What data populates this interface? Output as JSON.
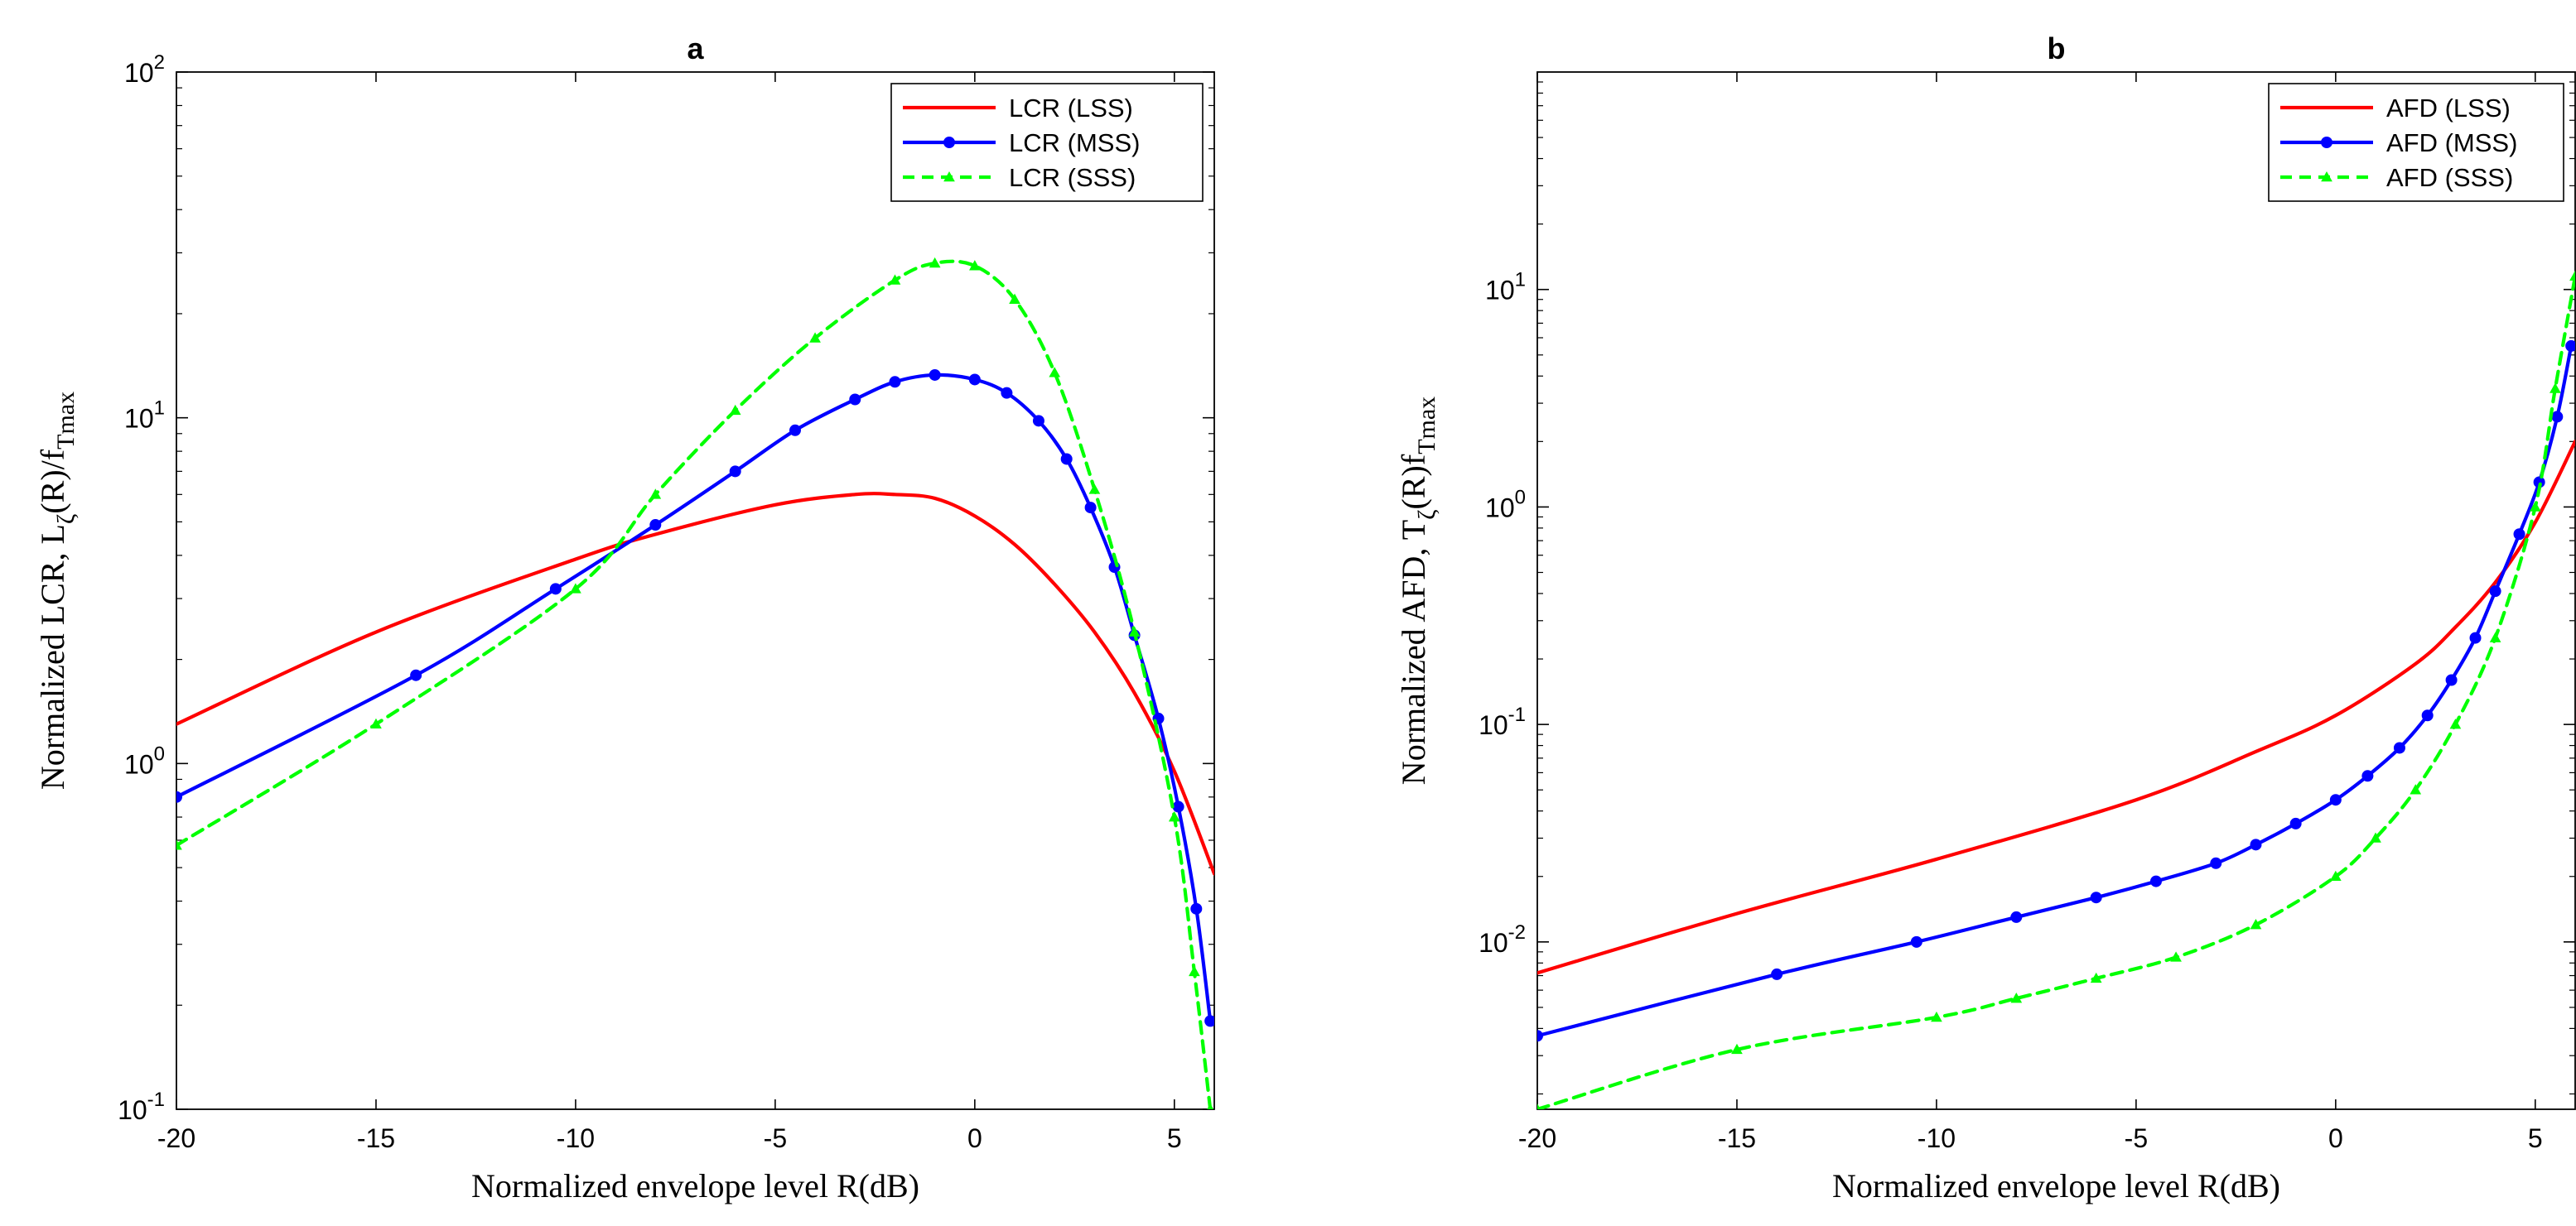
{
  "chart_data": [
    {
      "type": "line",
      "title": "a",
      "xlabel": "Normalized envelope level R(dB)",
      "ylabel": {
        "main": "Normalized LCR, L",
        "sub1": "ζ",
        "mid": "(R)/f",
        "sub2": "Tmax"
      },
      "xlim": [
        -20,
        6
      ],
      "ylim": [
        0.1,
        100
      ],
      "yscale": "log",
      "xticks": [
        -20,
        -15,
        -10,
        -5,
        0,
        5
      ],
      "xtick_labels": [
        "-20",
        "-15",
        "-10",
        "-5",
        "0",
        "5"
      ],
      "yticks": [
        0.1,
        1,
        10,
        100
      ],
      "ytick_labels": [
        {
          "base": "10",
          "exp": "-1"
        },
        {
          "base": "10",
          "exp": "0"
        },
        {
          "base": "10",
          "exp": "1"
        },
        {
          "base": "10",
          "exp": "2"
        }
      ],
      "legend_position": "top-right",
      "series": [
        {
          "name": "LCR (LSS)",
          "color": "#ff0000",
          "style": "solid",
          "marker": "none",
          "x": [
            -20,
            -15,
            -10,
            -8,
            -5,
            -3,
            -2,
            -1,
            0,
            1,
            2,
            3,
            4,
            5,
            6
          ],
          "y": [
            1.3,
            2.4,
            3.9,
            4.6,
            5.6,
            6.0,
            6.0,
            5.85,
            5.2,
            4.3,
            3.3,
            2.4,
            1.6,
            0.95,
            0.48
          ]
        },
        {
          "name": "LCR (MSS)",
          "color": "#0000ff",
          "style": "solid",
          "marker": "dot",
          "x": [
            -20,
            -14,
            -10.5,
            -8,
            -6,
            -4.5,
            -3,
            -2,
            -1,
            0,
            0.8,
            1.6,
            2.3,
            2.9,
            3.5,
            4.0,
            4.6,
            5.1,
            5.55,
            5.9
          ],
          "y": [
            0.8,
            1.8,
            3.2,
            4.9,
            7.0,
            9.2,
            11.3,
            12.7,
            13.3,
            12.9,
            11.8,
            9.8,
            7.6,
            5.5,
            3.7,
            2.35,
            1.35,
            0.75,
            0.38,
            0.18
          ]
        },
        {
          "name": "LCR (SSS)",
          "color": "#00ff00",
          "style": "dashed",
          "marker": "triangle",
          "x": [
            -20,
            -15,
            -10,
            -8,
            -6,
            -4,
            -2,
            -1,
            0,
            1,
            2,
            3,
            4,
            5,
            5.5,
            5.9
          ],
          "y": [
            0.58,
            1.3,
            3.2,
            6.0,
            10.5,
            17.0,
            25.0,
            28.0,
            27.5,
            22.0,
            13.5,
            6.2,
            2.4,
            0.7,
            0.25,
            0.1
          ]
        }
      ]
    },
    {
      "type": "line",
      "title": "b",
      "xlabel": "Normalized envelope level R(dB)",
      "ylabel": {
        "main": "Normalized AFD, T",
        "sub1": "ζ",
        "mid": "(R)f",
        "sub2": "Tmax"
      },
      "xlim": [
        -20,
        6
      ],
      "ylim": [
        0.0017,
        100
      ],
      "yscale": "log",
      "xticks": [
        -20,
        -15,
        -10,
        -5,
        0,
        5
      ],
      "xtick_labels": [
        "-20",
        "-15",
        "-10",
        "-5",
        "0",
        "5"
      ],
      "yticks": [
        0.01,
        0.1,
        1,
        10
      ],
      "ytick_labels": [
        {
          "base": "10",
          "exp": "-2"
        },
        {
          "base": "10",
          "exp": "-1"
        },
        {
          "base": "10",
          "exp": "0"
        },
        {
          "base": "10",
          "exp": "1"
        }
      ],
      "legend_position": "top-right",
      "series": [
        {
          "name": "AFD (LSS)",
          "color": "#ff0000",
          "style": "solid",
          "marker": "none",
          "x": [
            -20,
            -15,
            -10,
            -5,
            -2,
            0,
            2,
            3,
            4,
            5,
            6
          ],
          "y": [
            0.0072,
            0.0135,
            0.024,
            0.045,
            0.075,
            0.11,
            0.19,
            0.28,
            0.45,
            0.85,
            2.0
          ]
        },
        {
          "name": "AFD (MSS)",
          "color": "#0000ff",
          "style": "solid",
          "marker": "dot",
          "x": [
            -20,
            -14,
            -10.5,
            -8,
            -6,
            -4.5,
            -3,
            -2,
            -1,
            0,
            0.8,
            1.6,
            2.3,
            2.9,
            3.5,
            4.0,
            4.6,
            5.1,
            5.55,
            5.9
          ],
          "y": [
            0.0037,
            0.0071,
            0.01,
            0.013,
            0.016,
            0.019,
            0.023,
            0.028,
            0.035,
            0.045,
            0.058,
            0.078,
            0.11,
            0.16,
            0.25,
            0.41,
            0.75,
            1.3,
            2.6,
            5.5
          ]
        },
        {
          "name": "AFD (SSS)",
          "color": "#00ff00",
          "style": "dashed",
          "marker": "triangle",
          "x": [
            -20,
            -15,
            -10,
            -8,
            -6,
            -4,
            -2,
            0,
            1,
            2,
            3,
            4,
            5,
            5.5,
            6
          ],
          "y": [
            0.0017,
            0.0032,
            0.0045,
            0.0055,
            0.0068,
            0.0085,
            0.012,
            0.02,
            0.03,
            0.05,
            0.1,
            0.25,
            1.0,
            3.5,
            11.5
          ]
        }
      ]
    }
  ]
}
